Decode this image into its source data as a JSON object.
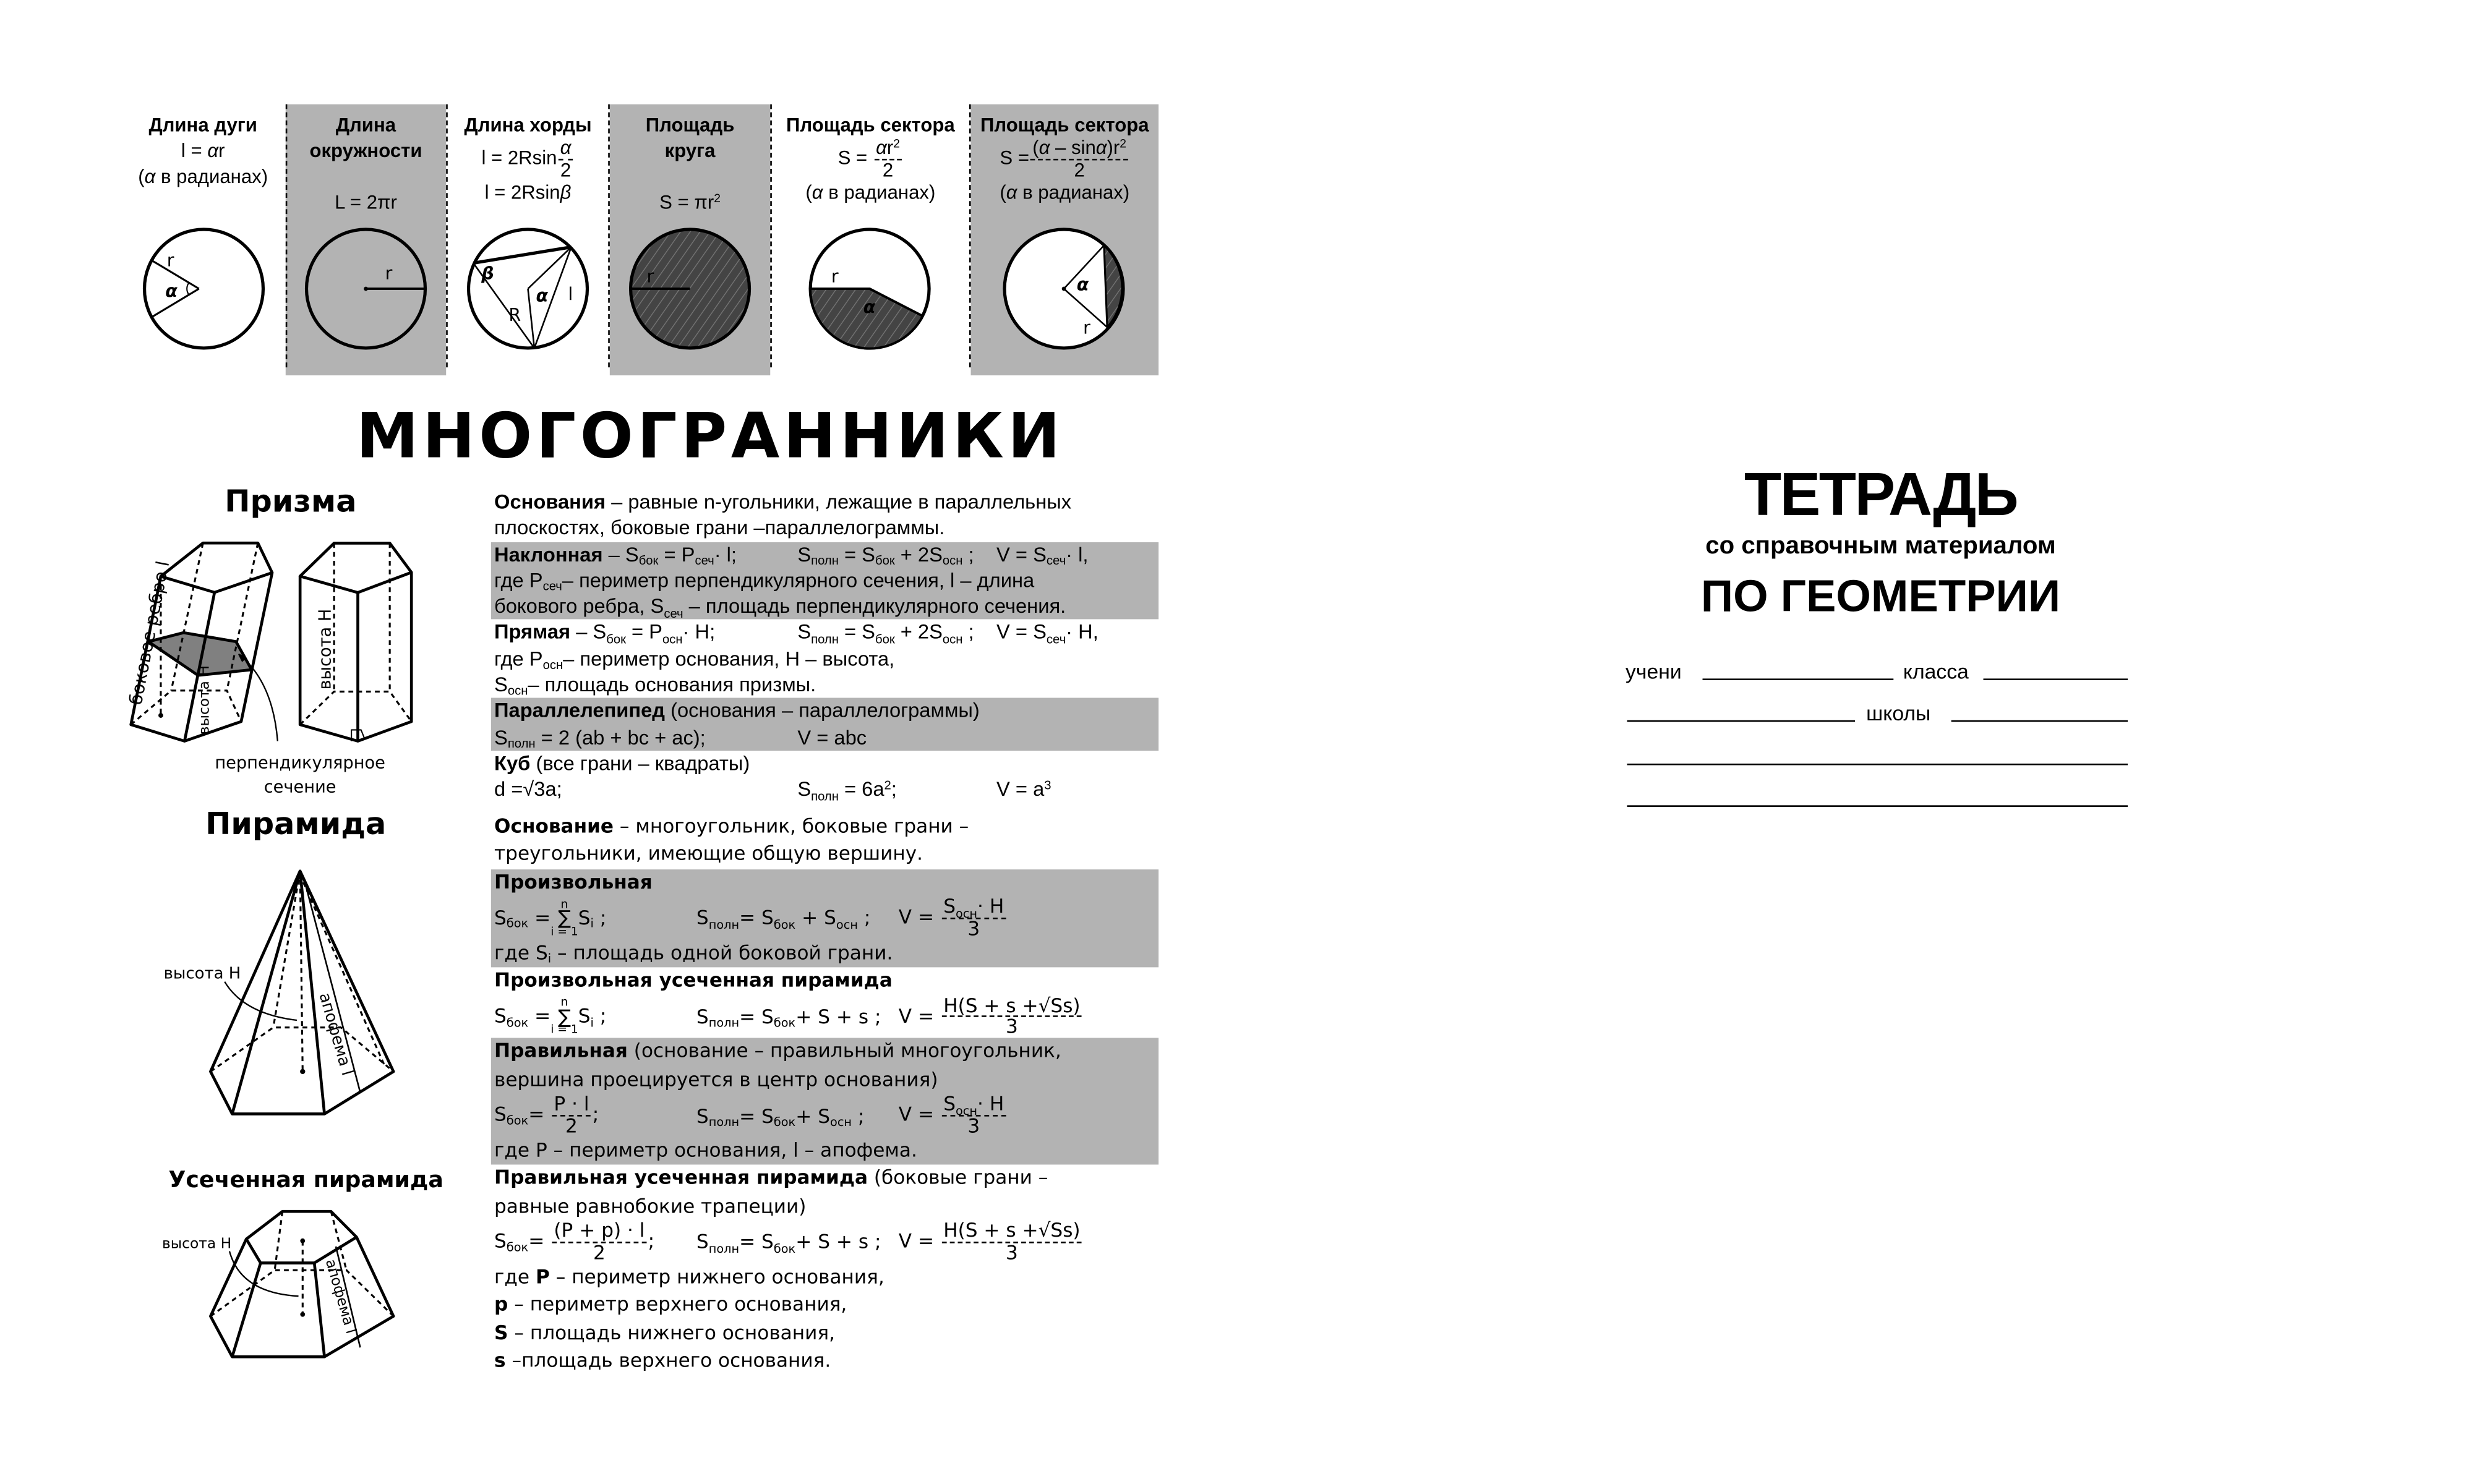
{
  "formula_cards": [
    {
      "title": [
        "Длина дуги"
      ],
      "lines": [
        [
          "l = ",
          {
            "t": "α",
            "i": true
          },
          "r"
        ],
        [
          "(",
          {
            "t": "α",
            "i": true
          },
          " в радианах)"
        ]
      ],
      "shaded": false
    },
    {
      "title": [
        "Длина",
        "окружности"
      ],
      "lines": [
        [
          ""
        ],
        [
          "L = 2πr"
        ]
      ],
      "shaded": true
    },
    {
      "title": [
        "Длина хорды"
      ],
      "lines": [
        [
          "l = 2Rsin",
          {
            "frac": [
              [
                {
                  "t": "α",
                  "i": true
                }
              ],
              [
                "2"
              ]
            ]
          }
        ],
        [
          "l = 2Rsin",
          {
            "t": "β",
            "i": true
          }
        ]
      ],
      "shaded": false
    },
    {
      "title": [
        "Площадь",
        "круга"
      ],
      "lines": [
        [
          ""
        ],
        [
          "S = πr",
          {
            "sup": "2"
          }
        ]
      ],
      "shaded": true
    },
    {
      "title": [
        "Площадь сектора"
      ],
      "lines": [
        [
          "S = ",
          {
            "frac": [
              [
                {
                  "t": "α",
                  "i": true
                },
                "r",
                {
                  "sup": "2"
                }
              ],
              [
                "2"
              ]
            ]
          }
        ],
        [
          "(",
          {
            "t": "α",
            "i": true
          },
          " в радианах)"
        ]
      ],
      "shaded": false
    },
    {
      "title": [
        "Площадь сектора"
      ],
      "lines": [
        [
          "S =",
          {
            "frac": [
              [
                "(",
                {
                  "t": "α",
                  "i": true
                },
                " – sin",
                {
                  "t": "α",
                  "i": true
                },
                ")r",
                {
                  "sup": "2"
                }
              ],
              [
                "2"
              ]
            ]
          }
        ],
        [
          "(",
          {
            "t": "α",
            "i": true
          },
          " в радианах)"
        ]
      ],
      "shaded": true
    }
  ],
  "circle_labels": {
    "arc": {
      "r": "r",
      "l": "l",
      "alpha": "α"
    },
    "circumference": {
      "r": "r"
    },
    "chord": {
      "beta": "β",
      "R": "R",
      "alpha": "α",
      "l": "l"
    },
    "area": {
      "r": "r"
    },
    "sector": {
      "r": "r",
      "alpha": "α"
    },
    "segment": {
      "alpha": "α",
      "r": "r"
    }
  },
  "colors": {
    "shade": "#b3b3b3",
    "fill_dark": "#444444",
    "section_fill": "#808080"
  },
  "main_title": "МНОГОГРАННИКИ",
  "prism": {
    "title": "Призма",
    "labels": {
      "lateral_edge": "боковое ребро l",
      "height_left": "высота H",
      "height_right": "высота H",
      "section_1": "перпендикулярное",
      "section_2": "сечение"
    },
    "blocks": [
      {
        "shade": false,
        "rows": [
          {
            "segs": [
              {
                "t": "Основания",
                "b": true
              },
              " – равные n-угольники, лежащие в параллельных"
            ]
          },
          {
            "segs": [
              "плоскостях, боковые грани –параллелограммы."
            ]
          }
        ]
      },
      {
        "shade": true,
        "rows": [
          {
            "cells": [
              [
                {
                  "t": "Наклонная",
                  "b": true
                },
                " – S",
                {
                  "sub": "бок"
                },
                " = P",
                {
                  "sub": "сеч"
                },
                "· l;"
              ],
              [
                "S",
                {
                  "sub": "полн"
                },
                " = S",
                {
                  "sub": "бок"
                },
                " + 2S",
                {
                  "sub": "осн"
                },
                " ;"
              ],
              [
                "V = S",
                {
                  "sub": "сеч"
                },
                "· l,"
              ]
            ]
          },
          {
            "segs": [
              "где P",
              {
                "sub": "сеч"
              },
              "– периметр перпендикулярного сечения, l – длина"
            ]
          },
          {
            "segs": [
              "бокового ребра, S",
              {
                "sub": "сеч"
              },
              " – площадь перпендикулярного сечения."
            ]
          }
        ]
      },
      {
        "shade": false,
        "rows": [
          {
            "cells": [
              [
                {
                  "t": "Прямая",
                  "b": true
                },
                " – S",
                {
                  "sub": "бок"
                },
                " = P",
                {
                  "sub": "осн"
                },
                "· H;"
              ],
              [
                "S",
                {
                  "sub": "полн"
                },
                " = S",
                {
                  "sub": "бок"
                },
                " + 2S",
                {
                  "sub": "осн"
                },
                " ;"
              ],
              [
                "V = S",
                {
                  "sub": "сеч"
                },
                "· H,"
              ]
            ]
          },
          {
            "segs": [
              "где P",
              {
                "sub": "осн"
              },
              "– периметр основания, H – высота,"
            ]
          },
          {
            "segs": [
              "S",
              {
                "sub": "осн"
              },
              "– площадь основания призмы."
            ]
          }
        ]
      },
      {
        "shade": true,
        "rows": [
          {
            "segs": [
              {
                "t": "Параллелепипед",
                "b": true
              },
              " (основания – параллелограммы)"
            ]
          },
          {
            "cells": [
              [
                "S",
                {
                  "sub": "полн"
                },
                " = 2 (ab + bc + ac);"
              ],
              [
                "V = abc"
              ],
              [
                ""
              ]
            ]
          }
        ]
      },
      {
        "shade": false,
        "rows": [
          {
            "segs": [
              {
                "t": "Куб",
                "b": true
              },
              " (все грани – квадраты)"
            ]
          },
          {
            "cells": [
              [
                "d =√3a;"
              ],
              [
                "S",
                {
                  "sub": "полн"
                },
                " = 6a",
                {
                  "sup": "2"
                },
                ";"
              ],
              [
                "V = a",
                {
                  "sup": "3"
                }
              ]
            ]
          }
        ]
      }
    ]
  },
  "pyramid": {
    "title": "Пирамида",
    "labels": {
      "height": "высота H",
      "apothem": "апофема l"
    },
    "truncated_title": "Усеченная пирамида",
    "truncated_labels": {
      "height": "высота H",
      "apothem": "апофема l"
    },
    "blocks": [
      {
        "shade": false,
        "rows": [
          {
            "segs": [
              {
                "t": "Основание",
                "b": true
              },
              " – многоугольник, боковые грани –"
            ]
          },
          {
            "segs": [
              "треугольники, имеющие общую вершину."
            ]
          }
        ]
      },
      {
        "shade": true,
        "rows": [
          {
            "segs": [
              {
                "t": "Произвольная",
                "b": true
              }
            ]
          },
          {
            "cells": [
              [
                "S",
                {
                  "sub": "бок"
                },
                " =",
                {
                  "sum": [
                    "n",
                    "i = 1"
                  ]
                },
                "S",
                {
                  "sub": "i"
                },
                " ;"
              ],
              [
                "S",
                {
                  "sub": "полн"
                },
                "= S",
                {
                  "sub": "бок"
                },
                " + S",
                {
                  "sub": "осн"
                },
                " ;"
              ],
              [
                "V = ",
                {
                  "frac": [
                    [
                      "S",
                      {
                        "sub": "осн"
                      },
                      "· H"
                    ],
                    [
                      "3"
                    ]
                  ]
                }
              ]
            ]
          },
          {
            "segs": [
              "где S",
              {
                "sub": "i"
              },
              " – площадь одной боковой грани."
            ]
          }
        ]
      },
      {
        "shade": false,
        "rows": [
          {
            "segs": [
              {
                "t": "Произвольная усеченная пирамида",
                "b": true
              }
            ]
          },
          {
            "cells": [
              [
                "S",
                {
                  "sub": "бок"
                },
                " =",
                {
                  "sum": [
                    "n",
                    "i = 1"
                  ]
                },
                "S",
                {
                  "sub": "i"
                },
                " ;"
              ],
              [
                "S",
                {
                  "sub": "полн"
                },
                "= S",
                {
                  "sub": "бок"
                },
                "+ S + s ;"
              ],
              [
                "V = ",
                {
                  "frac": [
                    [
                      "H(S + s +√Ss)"
                    ],
                    [
                      "3"
                    ]
                  ]
                }
              ]
            ]
          }
        ]
      },
      {
        "shade": true,
        "rows": [
          {
            "segs": [
              {
                "t": "Правильная",
                "b": true
              },
              " (основание – правильный многоугольник,"
            ]
          },
          {
            "segs": [
              "вершина проецируется в центр основания)"
            ]
          },
          {
            "cells": [
              [
                "S",
                {
                  "sub": "бок"
                },
                "= ",
                {
                  "frac": [
                    [
                      "P · l"
                    ],
                    [
                      "2"
                    ]
                  ]
                },
                ";"
              ],
              [
                "S",
                {
                  "sub": "полн"
                },
                "= S",
                {
                  "sub": "бок"
                },
                "+ S",
                {
                  "sub": "осн"
                },
                " ;"
              ],
              [
                "V = ",
                {
                  "frac": [
                    [
                      "S",
                      {
                        "sub": "осн"
                      },
                      "· H"
                    ],
                    [
                      "3"
                    ]
                  ]
                }
              ]
            ]
          },
          {
            "segs": [
              "где P – периметр основания, l – апофема."
            ]
          }
        ]
      },
      {
        "shade": false,
        "rows": [
          {
            "segs": [
              {
                "t": "Правильная усеченная пирамида",
                "b": true
              },
              " (боковые грани –"
            ]
          },
          {
            "segs": [
              "равные равнобокие трапеции)"
            ]
          },
          {
            "cells": [
              [
                "S",
                {
                  "sub": "бок"
                },
                "= ",
                {
                  "frac": [
                    [
                      "(P + p) · l"
                    ],
                    [
                      "2"
                    ]
                  ]
                },
                ";"
              ],
              [
                "S",
                {
                  "sub": "полн"
                },
                "= S",
                {
                  "sub": "бок"
                },
                "+ S + s ;"
              ],
              [
                "V = ",
                {
                  "frac": [
                    [
                      "H(S + s +√Ss)"
                    ],
                    [
                      "3"
                    ]
                  ]
                }
              ]
            ]
          },
          {
            "segs": [
              "где ",
              {
                "t": "P",
                "b": true
              },
              " – периметр нижнего основания,"
            ]
          },
          {
            "segs": [
              {
                "t": "p",
                "b": true
              },
              " – периметр верхнего основания,"
            ]
          },
          {
            "segs": [
              {
                "t": "S",
                "b": true
              },
              " – площадь нижнего основания,"
            ]
          },
          {
            "segs": [
              {
                "t": "s",
                "b": true
              },
              " –площадь верхнего основания."
            ]
          }
        ]
      }
    ]
  },
  "cover": {
    "title": "ТЕТРАДЬ",
    "subtitle": "со справочным материалом",
    "subject": "ПО ГЕОМЕТРИИ",
    "field_student": "учени",
    "field_class": "класса",
    "field_school": "школы"
  }
}
